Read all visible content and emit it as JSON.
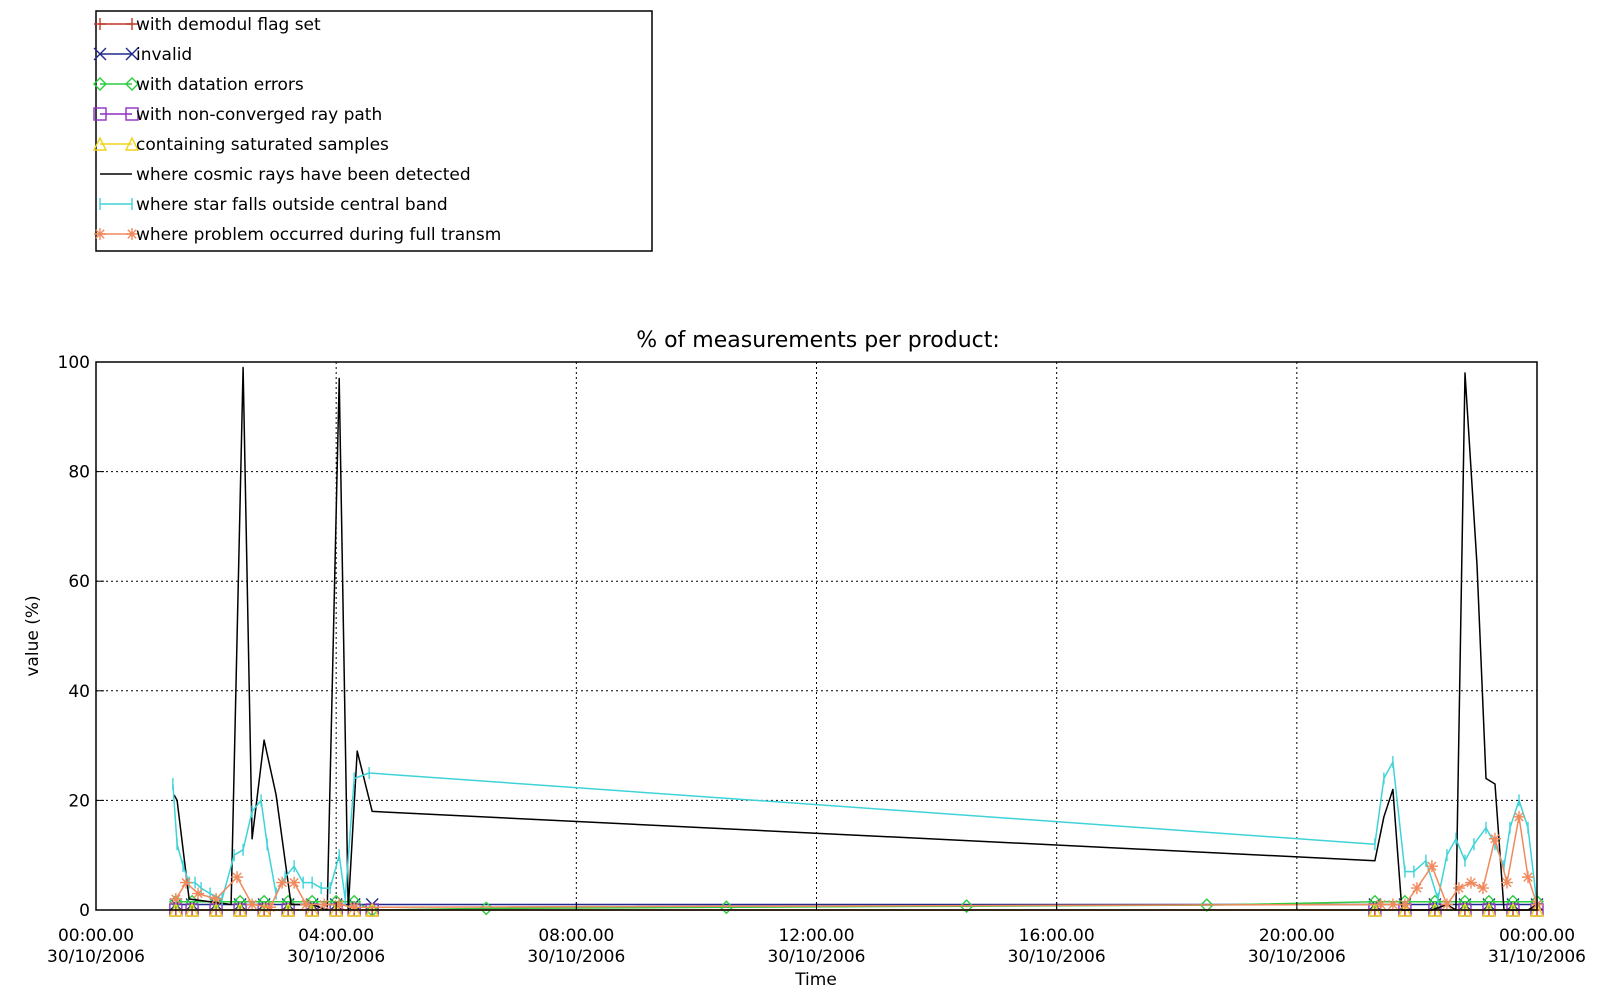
{
  "chart_data": {
    "type": "line",
    "title": "% of measurements per product:",
    "xlabel": "Time",
    "ylabel": "value (%)",
    "xlim": [
      0,
      24
    ],
    "ylim": [
      0,
      100
    ],
    "grid": true,
    "legend_placement": "above plot, top-left",
    "x_ticks": [
      {
        "hour": 0,
        "time": "00:00.00",
        "date": "30/10/2006"
      },
      {
        "hour": 4,
        "time": "04:00.00",
        "date": "30/10/2006"
      },
      {
        "hour": 8,
        "time": "08:00.00",
        "date": "30/10/2006"
      },
      {
        "hour": 12,
        "time": "12:00.00",
        "date": "30/10/2006"
      },
      {
        "hour": 16,
        "time": "16:00.00",
        "date": "30/10/2006"
      },
      {
        "hour": 20,
        "time": "20:00.00",
        "date": "30/10/2006"
      },
      {
        "hour": 24,
        "time": "00:00.00",
        "date": "31/10/2006"
      }
    ],
    "y_ticks": [
      "0",
      "20",
      "40",
      "60",
      "80",
      "100"
    ],
    "series": [
      {
        "name": "with demodul flag set",
        "color": "#c0392b",
        "marker": "plus",
        "x": [
          1.33,
          1.6,
          2.0,
          2.4,
          2.8,
          3.2,
          3.6,
          4.0,
          4.3,
          4.6,
          21.3,
          21.8,
          22.3,
          22.8,
          23.2,
          23.6,
          24.0
        ],
        "y": [
          0,
          0,
          0,
          0,
          0,
          0,
          0,
          0,
          0,
          0,
          0,
          0,
          0,
          0,
          0,
          0,
          0
        ]
      },
      {
        "name": "invalid",
        "color": "#1f2a8c",
        "marker": "x",
        "x": [
          1.33,
          1.6,
          2.0,
          2.4,
          2.8,
          3.2,
          3.6,
          4.0,
          4.3,
          4.6,
          21.3,
          21.8,
          22.3,
          22.8,
          23.2,
          23.6,
          24.0
        ],
        "y": [
          1,
          1,
          1,
          1,
          1,
          1,
          1,
          1,
          1,
          1,
          1,
          1,
          1,
          1,
          1,
          1,
          1
        ]
      },
      {
        "name": "with datation errors",
        "color": "#2ecc40",
        "marker": "diamond",
        "x": [
          1.33,
          1.6,
          2.0,
          2.4,
          2.8,
          3.2,
          3.6,
          4.0,
          4.3,
          4.6,
          6.5,
          10.5,
          14.5,
          18.5,
          21.3,
          21.8,
          22.3,
          22.8,
          23.2,
          23.6,
          24.0
        ],
        "y": [
          1.5,
          1.5,
          1.5,
          1.5,
          1.5,
          1.5,
          1.5,
          1.5,
          1.5,
          0,
          0.3,
          0.5,
          0.7,
          0.9,
          1.5,
          1.5,
          1.5,
          1.5,
          1.5,
          1.5,
          1.5
        ]
      },
      {
        "name": "with non-converged ray path",
        "color": "#8e2fbf",
        "marker": "square",
        "x": [
          1.33,
          1.6,
          2.0,
          2.4,
          2.8,
          3.2,
          3.6,
          4.0,
          4.3,
          4.6,
          21.3,
          21.8,
          22.3,
          22.8,
          23.2,
          23.6,
          24.0
        ],
        "y": [
          0,
          0,
          0,
          0,
          0,
          0,
          0,
          0,
          0,
          0,
          0,
          0,
          0,
          0,
          0,
          0,
          0
        ]
      },
      {
        "name": "containing saturated samples",
        "color": "#f1d21a",
        "marker": "triangle",
        "x": [
          1.33,
          1.6,
          2.0,
          2.4,
          2.8,
          3.2,
          3.6,
          4.0,
          4.3,
          4.6,
          21.3,
          21.8,
          22.3,
          22.8,
          23.2,
          23.6,
          24.0
        ],
        "y": [
          0,
          0,
          0,
          0,
          0,
          0,
          0,
          0,
          0,
          0,
          0,
          0,
          0,
          0,
          0,
          0,
          0
        ]
      },
      {
        "name": "where cosmic rays have been detected",
        "color": "#000000",
        "marker": "none",
        "x": [
          1.3,
          1.35,
          1.55,
          2.25,
          2.45,
          2.6,
          2.8,
          3.0,
          3.25,
          3.4,
          3.6,
          3.85,
          4.05,
          4.2,
          4.35,
          4.6,
          21.3,
          21.45,
          21.6,
          21.75,
          22.25,
          22.5,
          22.65,
          22.8,
          23.0,
          23.15,
          23.3,
          23.45,
          23.85,
          24.0
        ],
        "y": [
          21,
          20,
          2,
          1,
          99,
          13,
          31,
          21,
          1,
          1,
          1,
          0,
          97,
          0,
          29,
          18,
          9,
          17,
          22,
          0,
          0,
          1,
          0,
          98,
          63,
          24,
          23,
          0,
          0,
          1
        ]
      },
      {
        "name": "where star falls outside central band",
        "color": "#3fd3d9",
        "marker": "bar",
        "x": [
          1.28,
          1.35,
          1.45,
          1.55,
          1.65,
          1.75,
          1.9,
          2.1,
          2.3,
          2.45,
          2.6,
          2.75,
          2.85,
          3.0,
          3.15,
          3.3,
          3.45,
          3.6,
          3.75,
          3.9,
          4.05,
          4.15,
          4.3,
          4.55,
          21.3,
          21.45,
          21.6,
          21.8,
          21.95,
          22.15,
          22.35,
          22.5,
          22.65,
          22.8,
          22.95,
          23.15,
          23.3,
          23.45,
          23.55,
          23.7,
          23.85,
          24.0
        ],
        "y": [
          23,
          12,
          8,
          5,
          5,
          4,
          3,
          2,
          10,
          11,
          18,
          20,
          12,
          3,
          6,
          8,
          5,
          5,
          4,
          4,
          10,
          2,
          24,
          25,
          12,
          24,
          27,
          7,
          7,
          9,
          2,
          10,
          13,
          9,
          12,
          15,
          12,
          8,
          15,
          20,
          15,
          1
        ]
      },
      {
        "name": "where problem occurred during full transm",
        "color": "#f08a5d",
        "marker": "asterisk",
        "x": [
          1.33,
          1.5,
          1.7,
          2.0,
          2.35,
          2.6,
          2.9,
          3.1,
          3.3,
          3.5,
          3.8,
          4.05,
          4.3,
          21.4,
          21.6,
          21.8,
          22.0,
          22.25,
          22.5,
          22.7,
          22.9,
          23.1,
          23.3,
          23.5,
          23.7,
          23.85,
          24.0
        ],
        "y": [
          2,
          5,
          3,
          2,
          6,
          1,
          0.5,
          5,
          5,
          1,
          1,
          1,
          0.5,
          1,
          1,
          1,
          4,
          8,
          1,
          4,
          5,
          4,
          13,
          5,
          17,
          6,
          1
        ]
      }
    ]
  }
}
